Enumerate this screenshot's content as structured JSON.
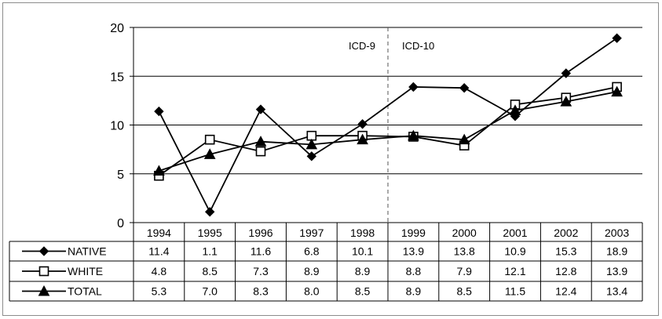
{
  "chart_data": {
    "type": "line",
    "categories": [
      "1994",
      "1995",
      "1996",
      "1997",
      "1998",
      "1999",
      "2000",
      "2001",
      "2002",
      "2003"
    ],
    "series": [
      {
        "name": "NATIVE",
        "marker": "diamond",
        "values": [
          11.4,
          1.1,
          11.6,
          6.8,
          10.1,
          13.9,
          13.8,
          10.9,
          15.3,
          18.9
        ],
        "labels": [
          "11.4",
          "1.1",
          "11.6",
          "6.8",
          "10.1",
          "13.9",
          "13.8",
          "10.9",
          "15.3",
          "18.9"
        ]
      },
      {
        "name": "WHITE",
        "marker": "square-open",
        "values": [
          4.8,
          8.5,
          7.3,
          8.9,
          8.9,
          8.8,
          7.9,
          12.1,
          12.8,
          13.9
        ],
        "labels": [
          "4.8",
          "8.5",
          "7.3",
          "8.9",
          "8.9",
          "8.8",
          "7.9",
          "12.1",
          "12.8",
          "13.9"
        ]
      },
      {
        "name": "TOTAL",
        "marker": "triangle",
        "values": [
          5.3,
          7.0,
          8.3,
          8.0,
          8.5,
          8.9,
          8.5,
          11.5,
          12.4,
          13.4
        ],
        "labels": [
          "5.3",
          "7.0",
          "8.3",
          "8.0",
          "8.5",
          "8.9",
          "8.5",
          "11.5",
          "12.4",
          "13.4"
        ]
      }
    ],
    "yticks": [
      "0",
      "5",
      "10",
      "15",
      "20"
    ],
    "ylim": [
      0,
      20
    ],
    "grid": true,
    "data_table": true,
    "annotations": [
      {
        "text": "ICD-9",
        "side": "left"
      },
      {
        "text": "ICD-10",
        "side": "right"
      }
    ],
    "divider_between": [
      "1998",
      "1999"
    ],
    "line_color": "#000000"
  }
}
